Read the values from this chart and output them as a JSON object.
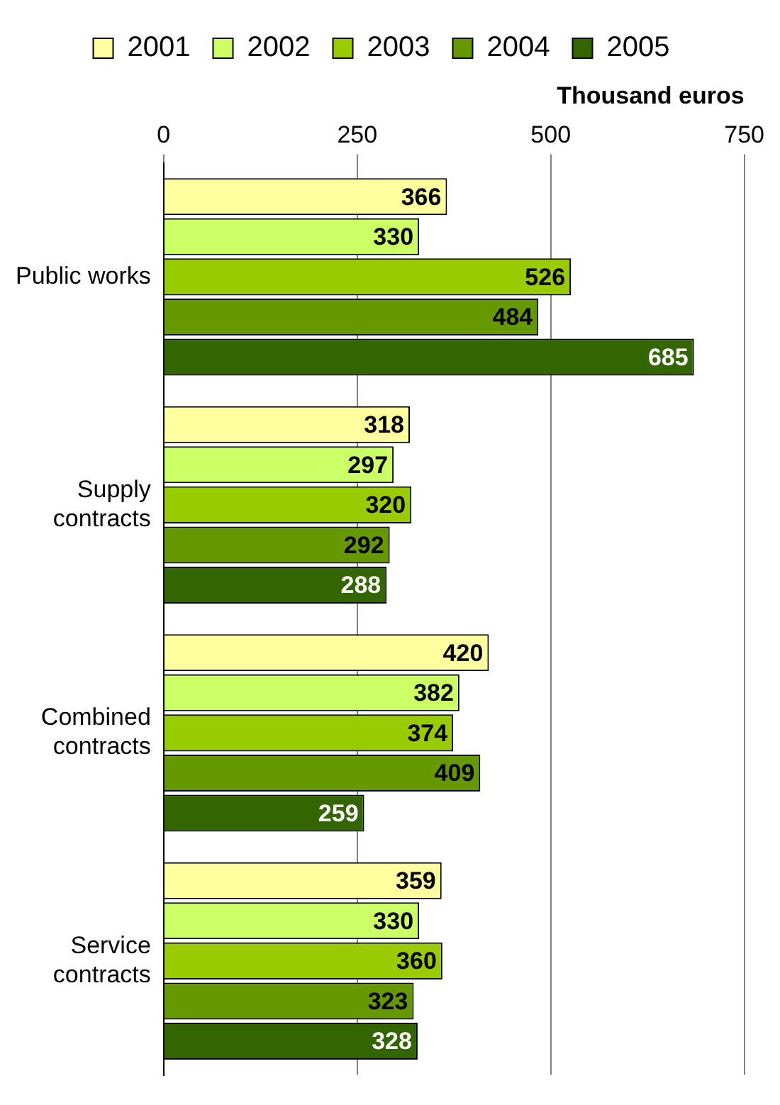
{
  "chart_data": {
    "type": "bar",
    "orientation": "horizontal",
    "xlabel": "Thousand euros",
    "categories": [
      "Public works",
      "Supply contracts",
      "Combined contracts",
      "Service contracts"
    ],
    "series": [
      {
        "name": "2001",
        "color": "#ffffa0",
        "values": [
          366,
          318,
          420,
          359
        ]
      },
      {
        "name": "2002",
        "color": "#ccff66",
        "values": [
          330,
          297,
          382,
          330
        ]
      },
      {
        "name": "2003",
        "color": "#99cc00",
        "values": [
          526,
          320,
          374,
          360
        ]
      },
      {
        "name": "2004",
        "color": "#669900",
        "values": [
          484,
          292,
          409,
          323
        ]
      },
      {
        "name": "2005",
        "color": "#336600",
        "values": [
          685,
          288,
          259,
          328
        ]
      }
    ],
    "xlim": [
      0,
      750
    ],
    "xticks": [
      0,
      250,
      500,
      750
    ],
    "grid": "x",
    "legend": "top",
    "data_labels": true
  }
}
